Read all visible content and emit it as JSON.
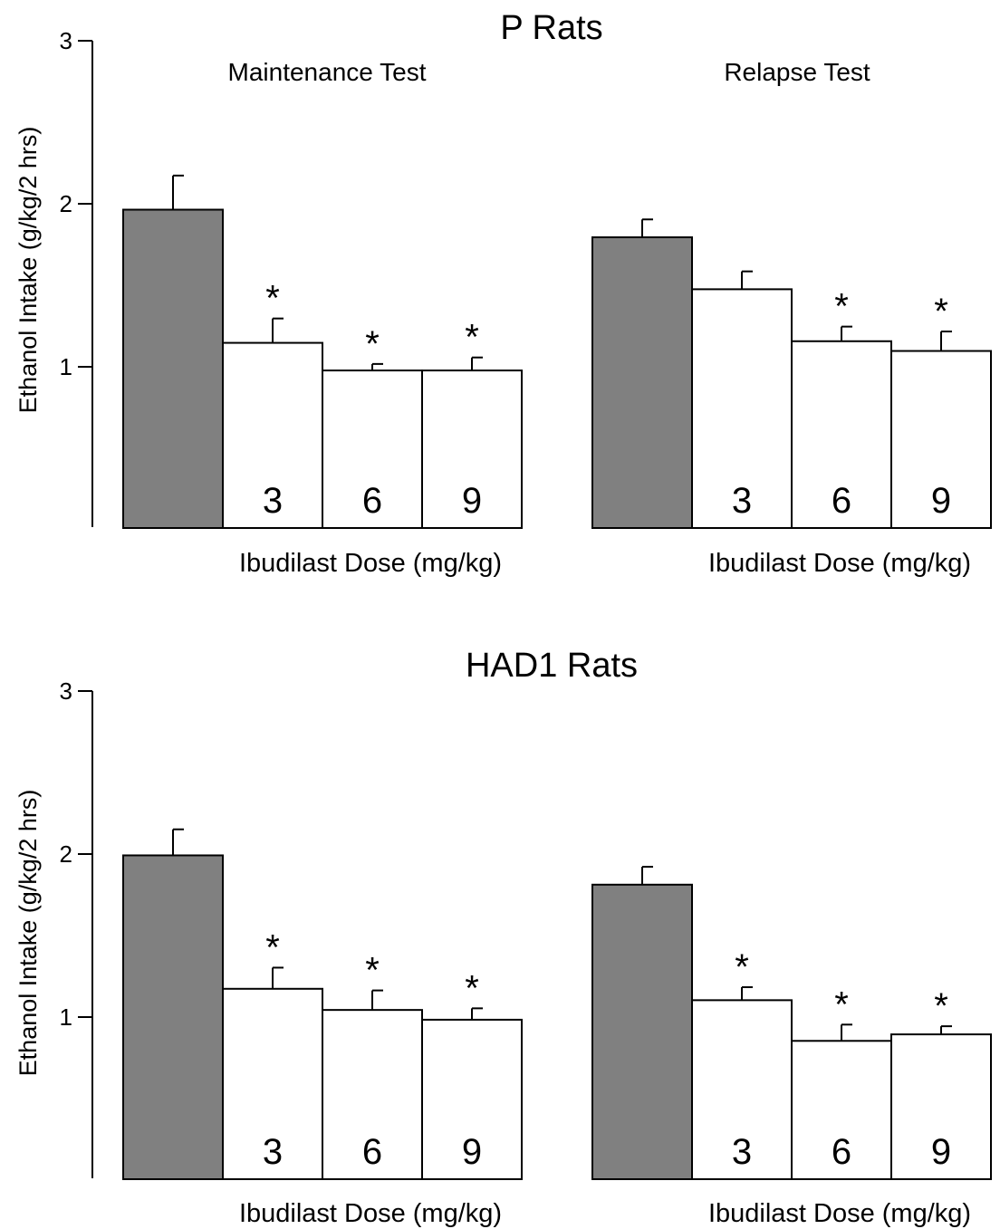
{
  "colors": {
    "control_bar": "#808080",
    "dose_bar": "#ffffff",
    "outline": "#000000"
  },
  "sections": [
    {
      "title": "P Rats",
      "ylabel": "Ethanol Intake (g/kg/2 hrs)",
      "yticks": [
        "1",
        "2",
        "3"
      ]
    },
    {
      "title": "HAD1 Rats",
      "ylabel": "Ethanol Intake (g/kg/2 hrs)",
      "yticks": [
        "1",
        "2",
        "3"
      ]
    }
  ],
  "chart_data": [
    {
      "type": "bar",
      "section": "P Rats",
      "title": "Maintenance Test",
      "xlabel": "Ibudilast Dose (mg/kg)",
      "ylabel": "Ethanol Intake (g/kg/2 hrs)",
      "ylim": [
        0,
        3
      ],
      "yticks": [
        1,
        2,
        3
      ],
      "categories": [
        "",
        "3",
        "6",
        "9"
      ],
      "values": [
        1.96,
        1.14,
        0.97,
        0.97
      ],
      "errors": [
        0.21,
        0.15,
        0.04,
        0.08
      ],
      "significant": [
        false,
        true,
        true,
        true
      ],
      "significance_marker": "*"
    },
    {
      "type": "bar",
      "section": "P Rats",
      "title": "Relapse Test",
      "xlabel": "Ibudilast Dose (mg/kg)",
      "ylabel": "Ethanol Intake (g/kg/2 hrs)",
      "ylim": [
        0,
        3
      ],
      "yticks": [
        1,
        2,
        3
      ],
      "categories": [
        "",
        "3",
        "6",
        "9"
      ],
      "values": [
        1.79,
        1.47,
        1.15,
        1.09
      ],
      "errors": [
        0.11,
        0.11,
        0.09,
        0.12
      ],
      "significant": [
        false,
        false,
        true,
        true
      ],
      "significance_marker": "*"
    },
    {
      "type": "bar",
      "section": "HAD1 Rats",
      "title": "",
      "xlabel": "Ibudilast Dose (mg/kg)",
      "ylabel": "Ethanol Intake (g/kg/2 hrs)",
      "ylim": [
        0,
        3
      ],
      "yticks": [
        1,
        2,
        3
      ],
      "categories": [
        "",
        "3",
        "6",
        "9"
      ],
      "values": [
        1.99,
        1.17,
        1.04,
        0.98
      ],
      "errors": [
        0.16,
        0.13,
        0.12,
        0.07
      ],
      "significant": [
        false,
        true,
        true,
        true
      ],
      "significance_marker": "*"
    },
    {
      "type": "bar",
      "section": "HAD1 Rats",
      "title": "",
      "xlabel": "Ibudilast Dose (mg/kg)",
      "ylabel": "Ethanol Intake (g/kg/2 hrs)",
      "ylim": [
        0,
        3
      ],
      "yticks": [
        1,
        2,
        3
      ],
      "categories": [
        "",
        "3",
        "6",
        "9"
      ],
      "values": [
        1.81,
        1.1,
        0.85,
        0.89
      ],
      "errors": [
        0.11,
        0.08,
        0.1,
        0.05
      ],
      "significant": [
        false,
        true,
        true,
        true
      ],
      "significance_marker": "*"
    }
  ]
}
